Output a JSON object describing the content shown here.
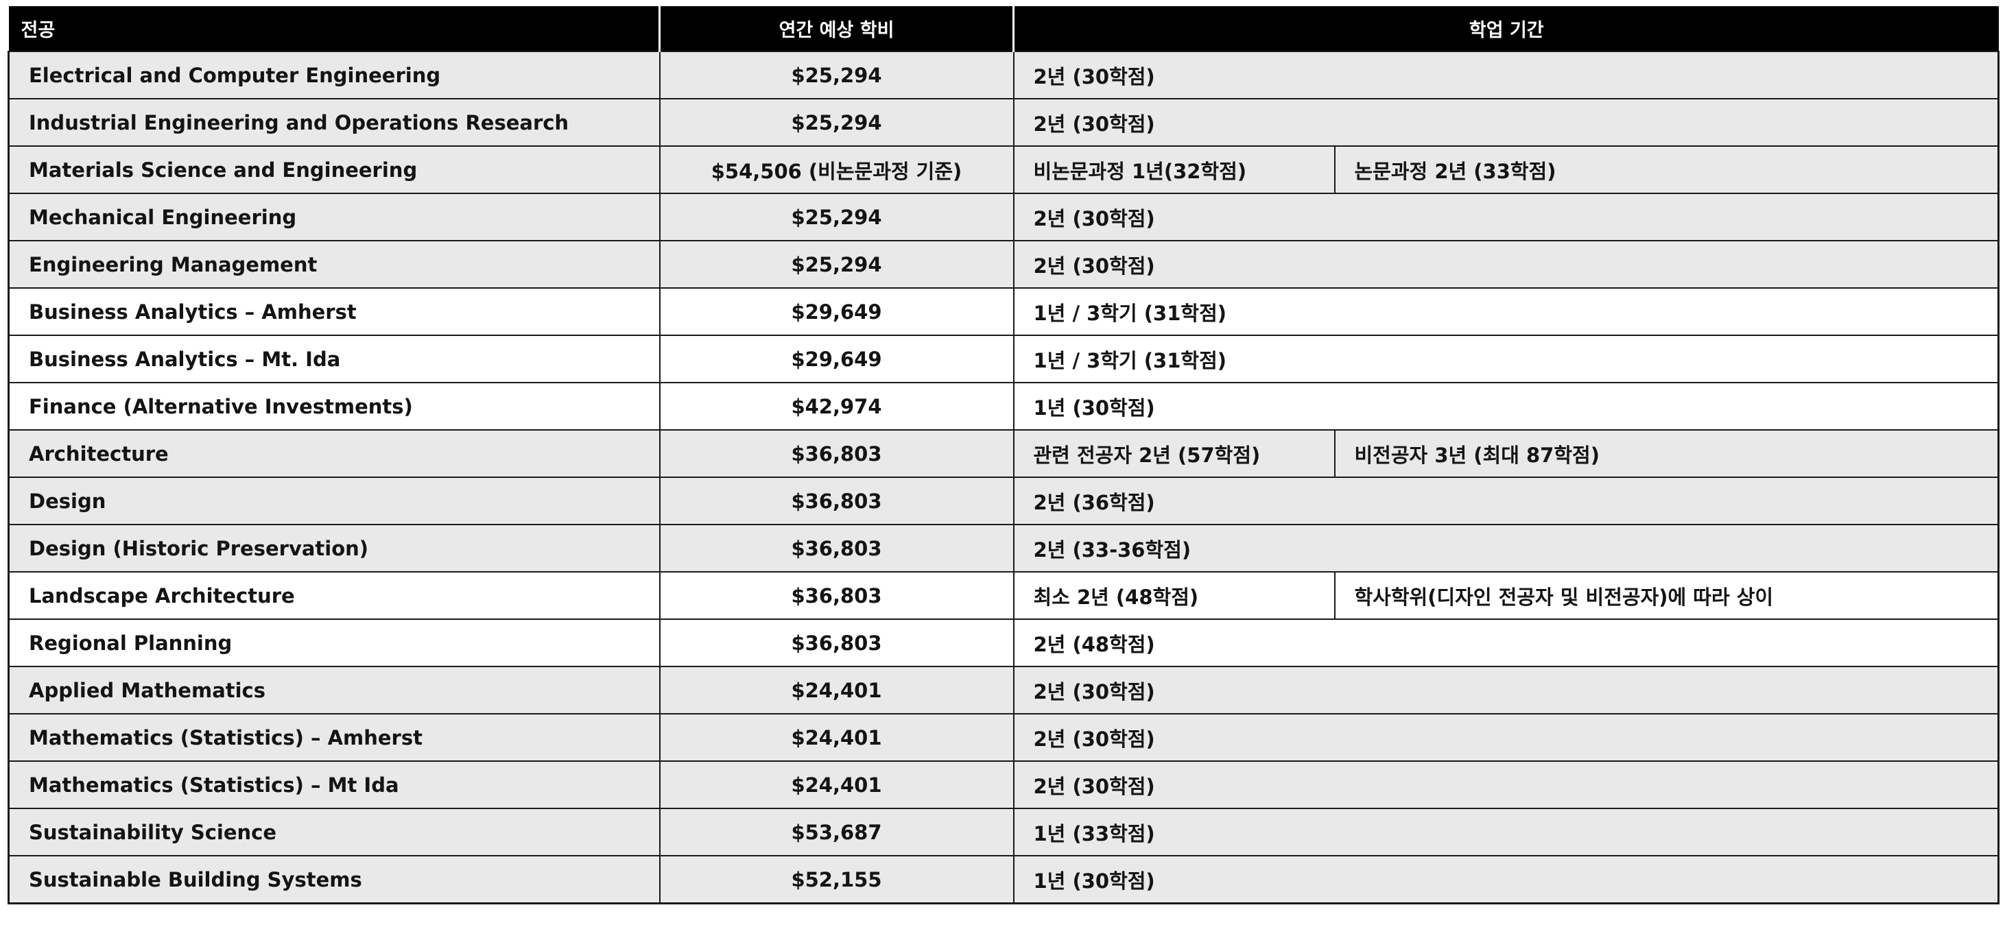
{
  "table": {
    "headers": {
      "major": "전공",
      "fee": "연간 예상 학비",
      "period": "학업 기간"
    },
    "rows": [
      {
        "major": "Electrical and Computer Engineering",
        "fee": "$25,294",
        "period": "2년 (30학점)",
        "period2": null,
        "shade": true
      },
      {
        "major": "Industrial Engineering and Operations Research",
        "fee": "$25,294",
        "period": "2년 (30학점)",
        "period2": null,
        "shade": true
      },
      {
        "major": "Materials Science and Engineering",
        "fee": "$54,506 (비논문과정 기준)",
        "period": "비논문과정 1년(32학점)",
        "period2": "논문과정 2년 (33학점)",
        "shade": true
      },
      {
        "major": "Mechanical Engineering",
        "fee": "$25,294",
        "period": "2년 (30학점)",
        "period2": null,
        "shade": true
      },
      {
        "major": "Engineering Management",
        "fee": "$25,294",
        "period": "2년 (30학점)",
        "period2": null,
        "shade": true
      },
      {
        "major": "Business Analytics – Amherst",
        "fee": "$29,649",
        "period": "1년 / 3학기 (31학점)",
        "period2": null,
        "shade": false
      },
      {
        "major": "Business Analytics – Mt. Ida",
        "fee": "$29,649",
        "period": "1년 / 3학기 (31학점)",
        "period2": null,
        "shade": false
      },
      {
        "major": "Finance (Alternative Investments)",
        "fee": "$42,974",
        "period": "1년 (30학점)",
        "period2": null,
        "shade": false
      },
      {
        "major": "Architecture",
        "fee": "$36,803",
        "period": "관련 전공자 2년 (57학점)",
        "period2": "비전공자 3년 (최대 87학점)",
        "shade": true
      },
      {
        "major": "Design",
        "fee": "$36,803",
        "period": "2년 (36학점)",
        "period2": null,
        "shade": true
      },
      {
        "major": "Design (Historic Preservation)",
        "fee": "$36,803",
        "period": "2년 (33-36학점)",
        "period2": null,
        "shade": true
      },
      {
        "major": "Landscape Architecture",
        "fee": "$36,803",
        "period": "최소 2년 (48학점)",
        "period2": "학사학위(디자인 전공자 및 비전공자)에 따라 상이",
        "shade": false
      },
      {
        "major": "Regional Planning",
        "fee": "$36,803",
        "period": "2년 (48학점)",
        "period2": null,
        "shade": false
      },
      {
        "major": "Applied Mathematics",
        "fee": "$24,401",
        "period": "2년 (30학점)",
        "period2": null,
        "shade": true
      },
      {
        "major": "Mathematics (Statistics) – Amherst",
        "fee": "$24,401",
        "period": "2년 (30학점)",
        "period2": null,
        "shade": true
      },
      {
        "major": "Mathematics (Statistics) – Mt Ida",
        "fee": "$24,401",
        "period": "2년 (30학점)",
        "period2": null,
        "shade": true
      },
      {
        "major": "Sustainability Science",
        "fee": "$53,687",
        "period": "1년 (33학점)",
        "period2": null,
        "shade": true
      },
      {
        "major": "Sustainable Building Systems",
        "fee": "$52,155",
        "period": "1년 (30학점)",
        "period2": null,
        "shade": true
      }
    ]
  },
  "colors": {
    "header_bg": "#000000",
    "header_text": "#ffffff",
    "shaded_row": "#e9e9e9",
    "plain_row": "#ffffff",
    "border": "#1a1a1a"
  }
}
